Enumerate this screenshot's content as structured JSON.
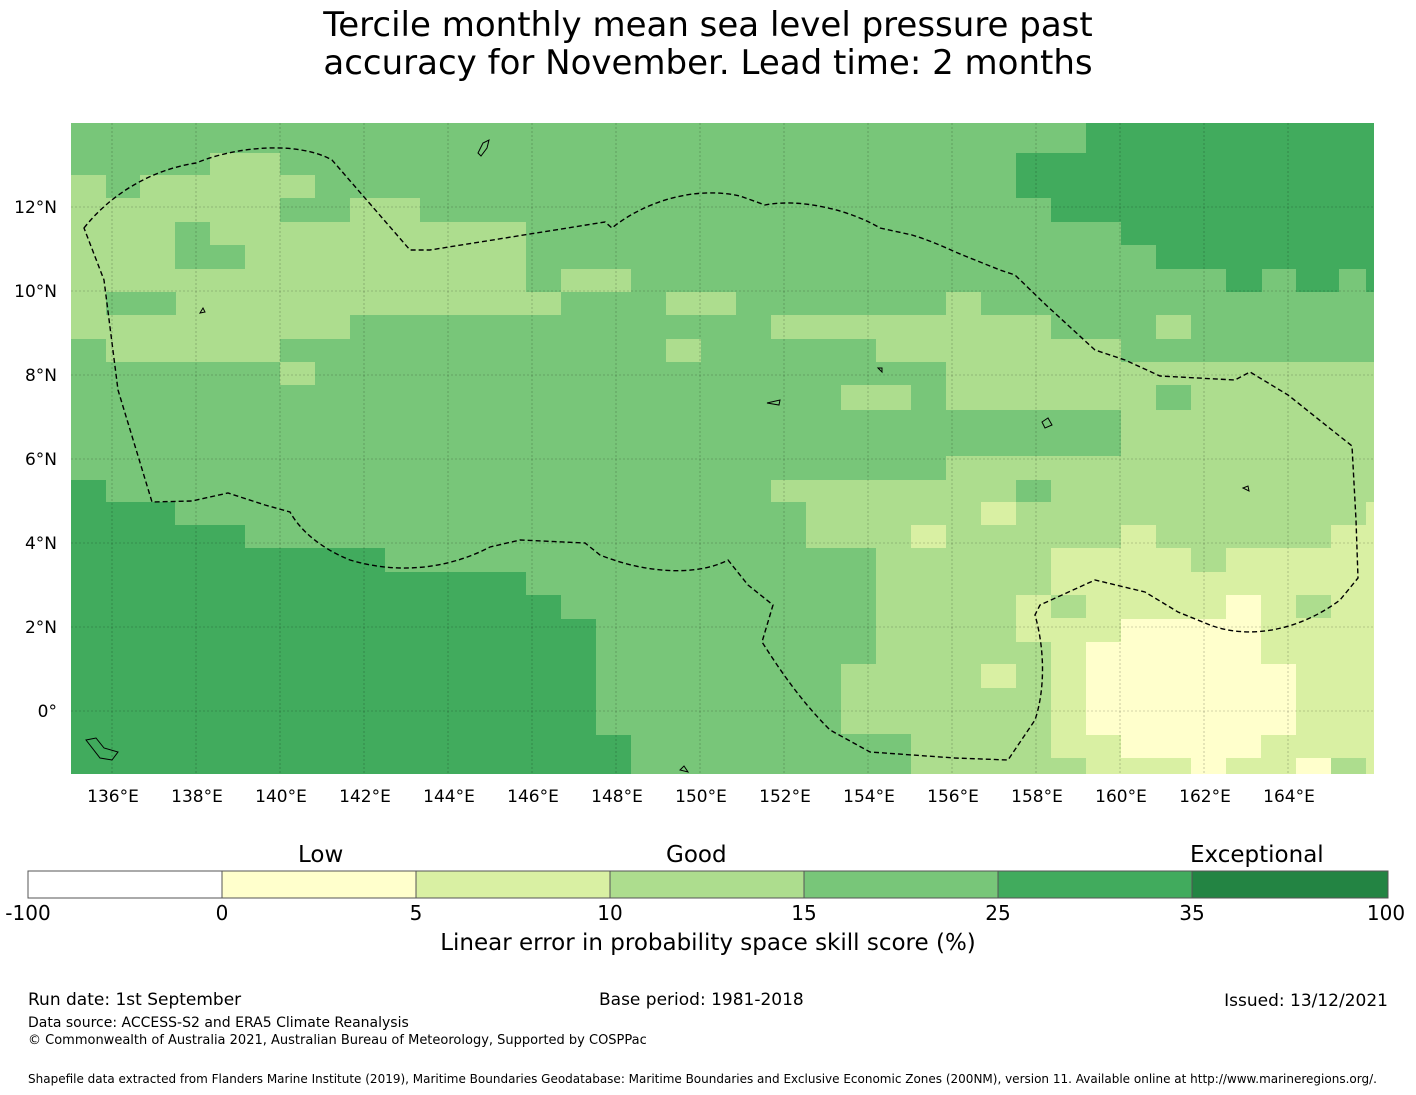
{
  "title": {
    "line1": "Tercile monthly mean sea level pressure past",
    "line2": "accuracy for November. Lead time: 2 months"
  },
  "map": {
    "lat_labels": [
      "12°N",
      "10°N",
      "8°N",
      "6°N",
      "4°N",
      "2°N",
      "0°"
    ],
    "lon_labels": [
      "136°E",
      "138°E",
      "140°E",
      "142°E",
      "144°E",
      "146°E",
      "148°E",
      "150°E",
      "152°E",
      "154°E",
      "156°E",
      "158°E",
      "160°E",
      "162°E",
      "164°E"
    ],
    "lat_range": [
      -1.5,
      14.0
    ],
    "lon_range": [
      134.0,
      165.0
    ],
    "grid": true,
    "boundary_style": "dashed",
    "category_colors": [
      "#ffffff",
      "#ffffcc",
      "#d9f0a3",
      "#addd8e",
      "#78c679",
      "#41ab5d",
      "#238443"
    ]
  },
  "colorbar": {
    "labels": {
      "low": "Low",
      "good": "Good",
      "exceptional": "Exceptional"
    },
    "ticks": [
      "-100",
      "0",
      "5",
      "10",
      "15",
      "25",
      "35",
      "100"
    ],
    "colors": [
      "#ffffff",
      "#ffffcc",
      "#d9f0a3",
      "#addd8e",
      "#78c679",
      "#41ab5d",
      "#238443"
    ],
    "title": "Linear error in probability space skill score (%)"
  },
  "footer": {
    "run_date": "Run date: 1st September",
    "base_period": "Base period: 1981-2018",
    "issued": "Issued: 13/12/2021",
    "data_source": "Data source: ACCESS-S2 and ERA5 Climate Reanalysis",
    "copyright": "© Commonwealth of Australia 2021, Australian Bureau of Meteorology, Supported by COSPPac",
    "shapefile": "Shapefile data extracted from Flanders Marine Institute (2019), Maritime Boundaries Geodatabase: Maritime Boundaries and Exclusive Economic Zones (200NM), version 11. Available online at http://www.marineregions.org/."
  }
}
